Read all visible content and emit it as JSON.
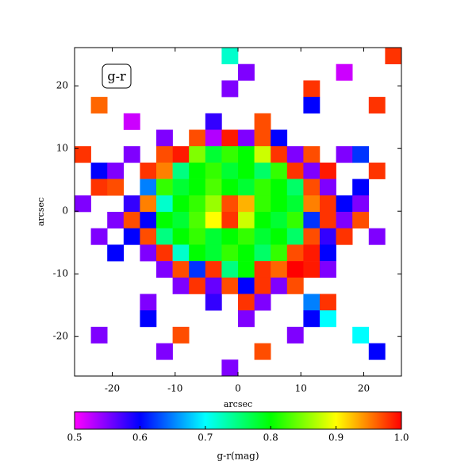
{
  "chart_data": {
    "type": "heatmap",
    "annotation": "g-r",
    "xlabel": "arcsec",
    "ylabel": "arcsec",
    "xlim": [
      -26,
      26
    ],
    "ylim": [
      -26.3,
      26.1
    ],
    "xticks": [
      -20,
      -10,
      0,
      10,
      20
    ],
    "yticks": [
      -20,
      -10,
      0,
      10,
      20
    ],
    "clim": [
      0.5,
      1.0
    ],
    "cticks": [
      0.5,
      0.6,
      0.7,
      0.8,
      0.9,
      {
        "value": 1,
        "label": "1.0"
      }
    ],
    "colorbar_label": "g-r(mag)",
    "colormap": [
      "#ff00ff",
      "#0000ff",
      "#00ffff",
      "#00ff00",
      "#ffff00",
      "#ff0000"
    ],
    "z": [
      [
        null,
        null,
        null,
        null,
        null,
        null,
        null,
        null,
        null,
        0.72,
        null,
        null,
        null,
        null,
        null,
        null,
        null,
        null,
        null,
        0.98
      ],
      [
        null,
        null,
        null,
        null,
        null,
        null,
        null,
        null,
        null,
        null,
        0.55,
        null,
        null,
        null,
        null,
        null,
        0.52,
        null,
        null,
        null
      ],
      [
        null,
        null,
        null,
        null,
        null,
        null,
        null,
        null,
        null,
        0.55,
        null,
        null,
        null,
        null,
        0.98,
        null,
        null,
        null,
        null,
        null
      ],
      [
        null,
        0.96,
        null,
        null,
        null,
        null,
        null,
        null,
        null,
        null,
        null,
        null,
        null,
        null,
        0.6,
        null,
        null,
        null,
        0.98,
        null
      ],
      [
        null,
        null,
        null,
        0.52,
        null,
        null,
        null,
        null,
        0.58,
        null,
        null,
        0.97,
        null,
        null,
        null,
        null,
        null,
        null,
        null,
        null
      ],
      [
        null,
        null,
        null,
        null,
        null,
        0.55,
        null,
        0.97,
        0.53,
        0.99,
        0.55,
        0.97,
        0.6,
        null,
        null,
        null,
        null,
        null,
        null,
        null
      ],
      [
        0.98,
        null,
        null,
        0.55,
        null,
        0.97,
        0.99,
        0.85,
        0.78,
        0.82,
        0.8,
        0.88,
        0.98,
        0.55,
        0.97,
        null,
        0.55,
        0.62,
        null,
        null
      ],
      [
        null,
        0.6,
        0.55,
        null,
        0.98,
        0.95,
        0.75,
        0.8,
        0.82,
        0.78,
        0.8,
        0.76,
        0.82,
        0.98,
        0.55,
        0.99,
        null,
        null,
        0.98,
        null
      ],
      [
        null,
        0.98,
        0.97,
        null,
        0.65,
        0.82,
        0.78,
        0.8,
        0.83,
        0.8,
        0.78,
        0.82,
        0.8,
        0.76,
        0.97,
        0.55,
        null,
        0.6,
        null,
        null
      ],
      [
        0.55,
        null,
        null,
        0.58,
        0.95,
        0.72,
        0.8,
        0.82,
        0.86,
        0.97,
        0.93,
        0.82,
        0.8,
        0.78,
        0.95,
        0.98,
        0.6,
        0.55,
        null,
        null
      ],
      [
        null,
        null,
        0.55,
        0.97,
        0.6,
        0.8,
        0.78,
        0.83,
        0.9,
        0.98,
        0.88,
        0.8,
        0.78,
        0.82,
        0.62,
        0.98,
        0.55,
        0.97,
        null,
        null
      ],
      [
        null,
        0.55,
        null,
        0.6,
        0.97,
        0.75,
        0.8,
        0.82,
        0.78,
        0.8,
        0.82,
        0.78,
        0.8,
        0.76,
        0.97,
        0.58,
        0.98,
        null,
        0.55,
        null
      ],
      [
        null,
        null,
        0.6,
        null,
        0.55,
        0.98,
        0.72,
        0.8,
        0.78,
        0.82,
        0.8,
        0.76,
        0.82,
        0.97,
        0.99,
        0.6,
        null,
        null,
        null,
        null
      ],
      [
        null,
        null,
        null,
        null,
        null,
        0.55,
        0.97,
        0.62,
        0.98,
        0.75,
        0.8,
        0.98,
        0.96,
        1.0,
        0.99,
        0.55,
        null,
        null,
        null,
        null
      ],
      [
        null,
        null,
        null,
        null,
        null,
        null,
        0.55,
        0.98,
        0.56,
        0.97,
        0.6,
        0.98,
        0.55,
        0.97,
        null,
        null,
        null,
        null,
        null,
        null
      ],
      [
        null,
        null,
        null,
        null,
        0.55,
        null,
        null,
        null,
        0.58,
        null,
        0.98,
        0.55,
        null,
        null,
        0.65,
        0.98,
        null,
        null,
        null,
        null
      ],
      [
        null,
        null,
        null,
        null,
        0.6,
        null,
        null,
        null,
        null,
        null,
        0.55,
        null,
        null,
        null,
        0.6,
        0.7,
        null,
        null,
        null,
        null
      ],
      [
        null,
        0.55,
        null,
        null,
        null,
        null,
        0.97,
        null,
        null,
        null,
        null,
        null,
        null,
        0.55,
        null,
        null,
        null,
        0.7,
        null,
        null
      ],
      [
        null,
        null,
        null,
        null,
        null,
        0.55,
        null,
        null,
        null,
        null,
        null,
        0.97,
        null,
        null,
        null,
        null,
        null,
        null,
        0.6,
        null
      ],
      [
        null,
        null,
        null,
        null,
        null,
        null,
        null,
        null,
        null,
        0.55,
        null,
        null,
        null,
        null,
        null,
        null,
        null,
        null,
        null,
        null
      ]
    ]
  }
}
